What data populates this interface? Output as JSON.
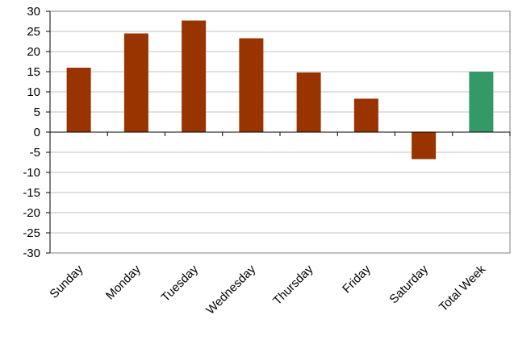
{
  "chart_data": {
    "type": "bar",
    "categories": [
      "Sunday",
      "Monday",
      "Tuesday",
      "Wednesday",
      "Thursday",
      "Friday",
      "Saturday",
      "Total Week"
    ],
    "values": [
      16,
      24.5,
      27.7,
      23.3,
      14.8,
      8.3,
      -6.7,
      15
    ],
    "bar_colors": [
      "#993300",
      "#993300",
      "#993300",
      "#993300",
      "#993300",
      "#993300",
      "#993300",
      "#339966"
    ],
    "ylim": [
      -30,
      30
    ],
    "yticks": [
      "-30",
      "-25",
      "-20",
      "-15",
      "-10",
      "-5",
      "0",
      "5",
      "10",
      "15",
      "20",
      "25",
      "30"
    ],
    "grid": "horizontal",
    "legend": "none",
    "gridline_color": "#c0c0c0",
    "axis_color": "#808080"
  }
}
